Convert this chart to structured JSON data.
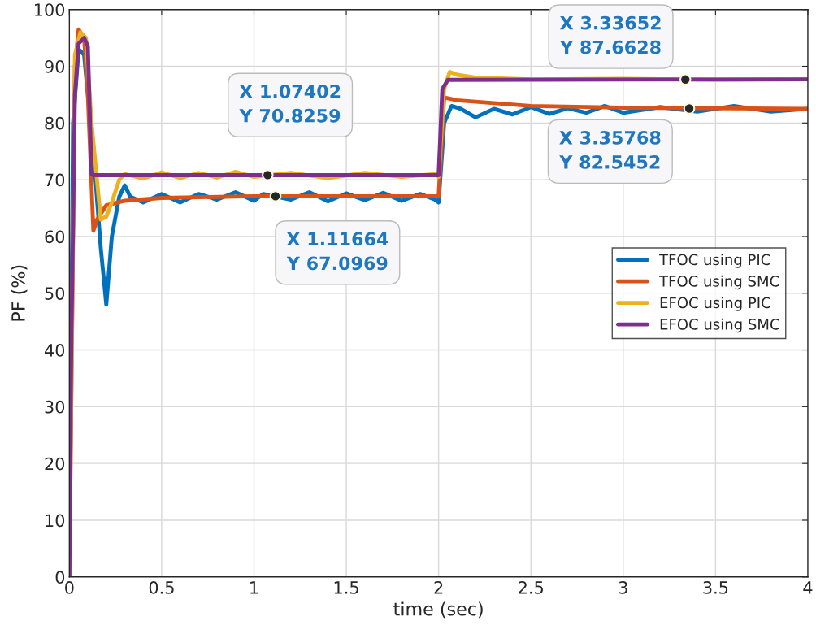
{
  "chart_data": {
    "type": "line",
    "xlabel": "time (sec)",
    "ylabel": "PF (%)",
    "xlim": [
      0,
      4
    ],
    "ylim": [
      0,
      100
    ],
    "xticks": [
      0,
      0.5,
      1,
      1.5,
      2,
      2.5,
      3,
      3.5,
      4
    ],
    "yticks": [
      0,
      10,
      20,
      30,
      40,
      50,
      60,
      70,
      80,
      90,
      100
    ],
    "grid": true,
    "legend": "center right",
    "line_style": "solid",
    "series": [
      {
        "name": "TFOC using PIC",
        "color": "#0072bd",
        "x": [
          0,
          0.02,
          0.05,
          0.08,
          0.1,
          0.13,
          0.17,
          0.2,
          0.23,
          0.27,
          0.3,
          0.33,
          0.4,
          0.5,
          0.6,
          0.7,
          0.8,
          0.9,
          1.0,
          1.05,
          1.2,
          1.3,
          1.4,
          1.5,
          1.6,
          1.7,
          1.8,
          1.9,
          1.98,
          2.0,
          2.03,
          2.07,
          2.12,
          2.2,
          2.3,
          2.4,
          2.5,
          2.6,
          2.7,
          2.8,
          2.9,
          3.0,
          3.2,
          3.4,
          3.6,
          3.8,
          4.0
        ],
        "values": [
          0,
          80,
          93,
          92,
          85,
          75,
          58,
          48,
          60,
          67,
          69,
          67,
          66,
          67.5,
          66,
          67.5,
          66.5,
          67.8,
          66.3,
          67.5,
          66.5,
          67.8,
          66.2,
          67.6,
          66.4,
          67.7,
          66.3,
          67.5,
          66.5,
          66,
          80,
          83,
          82.5,
          81,
          82.5,
          81.5,
          82.8,
          81.6,
          82.6,
          81.8,
          83,
          81.8,
          82.8,
          82,
          83,
          82,
          82.5
        ]
      },
      {
        "name": "TFOC using SMC",
        "color": "#d95319",
        "x": [
          0,
          0.03,
          0.05,
          0.08,
          0.1,
          0.13,
          0.15,
          0.2,
          0.3,
          0.5,
          1.0,
          2.0,
          2.03,
          2.1,
          2.5,
          3.0,
          4.0
        ],
        "values": [
          0,
          90,
          96.5,
          95,
          85,
          61,
          63,
          65.5,
          66.3,
          66.8,
          67.1,
          67.1,
          84.5,
          84,
          83,
          82.7,
          82.5
        ]
      },
      {
        "name": "EFOC using PIC",
        "color": "#edb120",
        "x": [
          0,
          0.03,
          0.06,
          0.09,
          0.12,
          0.17,
          0.2,
          0.23,
          0.27,
          0.3,
          0.4,
          0.5,
          0.6,
          0.7,
          0.8,
          0.9,
          1.0,
          1.2,
          1.4,
          1.6,
          1.8,
          1.98,
          2.0,
          2.03,
          2.06,
          2.1,
          2.2,
          2.5,
          3.0,
          3.5,
          4.0
        ],
        "values": [
          0,
          92,
          96,
          95,
          80,
          63,
          63.5,
          66,
          70,
          71,
          70.2,
          71.3,
          70.3,
          71.2,
          70.4,
          71.4,
          70.5,
          71.2,
          70.3,
          71.2,
          70.5,
          71,
          70.5,
          86,
          89,
          88.5,
          88,
          87.7,
          87.8,
          87.6,
          87.7
        ]
      },
      {
        "name": "EFOC using SMC",
        "color": "#7e2f8e",
        "x": [
          0,
          0.01,
          0.03,
          0.05,
          0.08,
          0.1,
          0.12,
          0.13,
          2.0,
          2.02,
          2.05,
          4.0
        ],
        "values": [
          0,
          40,
          85,
          94,
          95,
          93.5,
          71,
          70.8,
          70.8,
          86,
          87.6,
          87.7
        ]
      }
    ],
    "annotations": [
      {
        "text": "X 1.07402\nY 70.8259",
        "x": 1.07402,
        "y": 70.8259
      },
      {
        "text": "X 1.11664\nY 67.0969",
        "x": 1.11664,
        "y": 67.0969
      },
      {
        "text": "X 3.33652\nY 87.6628",
        "x": 3.33652,
        "y": 87.6628
      },
      {
        "text": "X 3.35768\nY 82.5452",
        "x": 3.35768,
        "y": 82.5452
      }
    ]
  }
}
